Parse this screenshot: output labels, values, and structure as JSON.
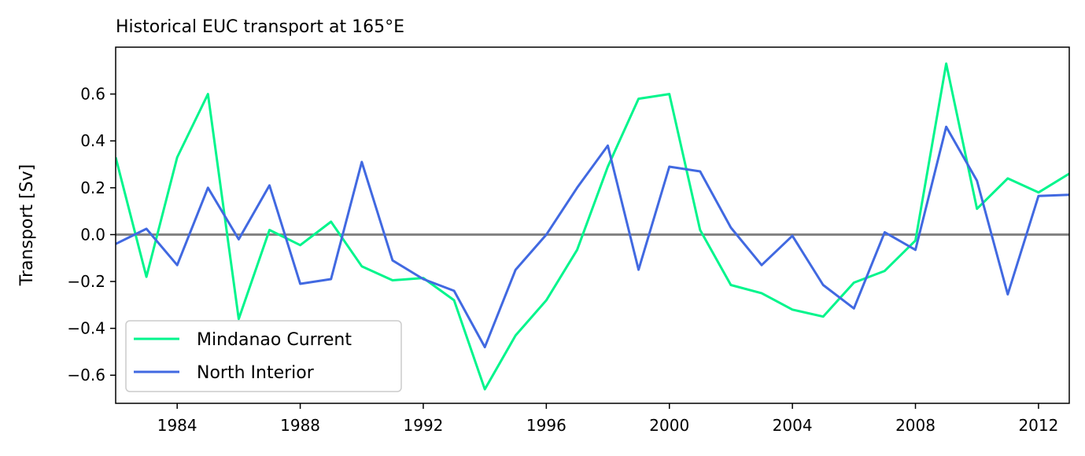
{
  "chart_data": {
    "type": "line",
    "title": "Historical EUC transport at 165°E",
    "xlabel": "",
    "ylabel": "Transport [Sv]",
    "xlim": [
      1982,
      2013
    ],
    "ylim": [
      -0.72,
      0.8
    ],
    "xticks": [
      1984,
      1988,
      1992,
      1996,
      2000,
      2004,
      2008,
      2012
    ],
    "xtick_labels": [
      "1984",
      "1988",
      "1992",
      "1996",
      "2000",
      "2004",
      "2008",
      "2012"
    ],
    "yticks": [
      -0.6,
      -0.4,
      -0.2,
      0.0,
      0.2,
      0.4,
      0.6
    ],
    "ytick_labels": [
      "−0.6",
      "−0.4",
      "−0.2",
      "0.0",
      "0.2",
      "0.4",
      "0.6"
    ],
    "grid": false,
    "legend_position": "lower-left",
    "zero_line_color": "#808080",
    "x": [
      1982,
      1983,
      1984,
      1985,
      1986,
      1987,
      1988,
      1989,
      1990,
      1991,
      1992,
      1993,
      1994,
      1995,
      1996,
      1997,
      1998,
      1999,
      2000,
      2001,
      2002,
      2003,
      2004,
      2005,
      2006,
      2007,
      2008,
      2009,
      2010,
      2011,
      2012,
      2013
    ],
    "series": [
      {
        "name": "Mindanao Current",
        "color": "#00f58c",
        "values": [
          0.33,
          -0.18,
          0.33,
          0.6,
          -0.36,
          0.02,
          -0.045,
          0.055,
          -0.135,
          -0.195,
          -0.185,
          -0.28,
          -0.66,
          -0.43,
          -0.28,
          -0.065,
          0.29,
          0.58,
          0.6,
          0.02,
          -0.215,
          -0.25,
          -0.32,
          -0.35,
          -0.205,
          -0.155,
          -0.025,
          0.73,
          0.11,
          0.24,
          0.18,
          0.26
        ]
      },
      {
        "name": "North Interior",
        "color": "#4169e1",
        "values": [
          -0.04,
          0.025,
          -0.13,
          0.2,
          -0.02,
          0.21,
          -0.21,
          -0.19,
          0.31,
          -0.11,
          -0.19,
          -0.24,
          -0.48,
          -0.15,
          0.0,
          0.2,
          0.38,
          -0.15,
          0.29,
          0.27,
          0.03,
          -0.13,
          -0.005,
          -0.215,
          -0.315,
          0.01,
          -0.065,
          0.46,
          0.23,
          -0.255,
          0.165,
          0.17
        ]
      }
    ]
  }
}
